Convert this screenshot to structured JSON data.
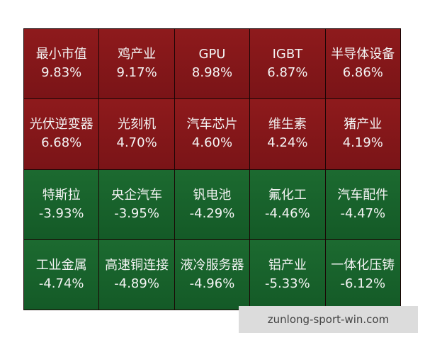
{
  "grid": {
    "rows": [
      [
        {
          "label": "最小市值",
          "value": "9.83%"
        },
        {
          "label": "鸡产业",
          "value": "9.17%"
        },
        {
          "label": "GPU",
          "value": "8.98%"
        },
        {
          "label": "IGBT",
          "value": "6.87%"
        },
        {
          "label": "半导体设备",
          "value": "6.86%"
        }
      ],
      [
        {
          "label": "光伏逆变器",
          "value": "6.68%"
        },
        {
          "label": "光刻机",
          "value": "4.70%"
        },
        {
          "label": "汽车芯片",
          "value": "4.60%"
        },
        {
          "label": "维生素",
          "value": "4.24%"
        },
        {
          "label": "猪产业",
          "value": "4.19%"
        }
      ],
      [
        {
          "label": "特斯拉",
          "value": "-3.93%"
        },
        {
          "label": "央企汽车",
          "value": "-3.95%"
        },
        {
          "label": "钒电池",
          "value": "-4.29%"
        },
        {
          "label": "氟化工",
          "value": "-4.46%"
        },
        {
          "label": "汽车配件",
          "value": "-4.47%"
        }
      ],
      [
        {
          "label": "工业金属",
          "value": "-4.74%"
        },
        {
          "label": "高速铜连接",
          "value": "-4.89%"
        },
        {
          "label": "液冷服务器",
          "value": "-4.96%"
        },
        {
          "label": "铝产业",
          "value": "-5.33%"
        },
        {
          "label": "一体化压铸",
          "value": "-6.12%"
        }
      ]
    ]
  },
  "watermark": "zunlong-sport-win.com"
}
